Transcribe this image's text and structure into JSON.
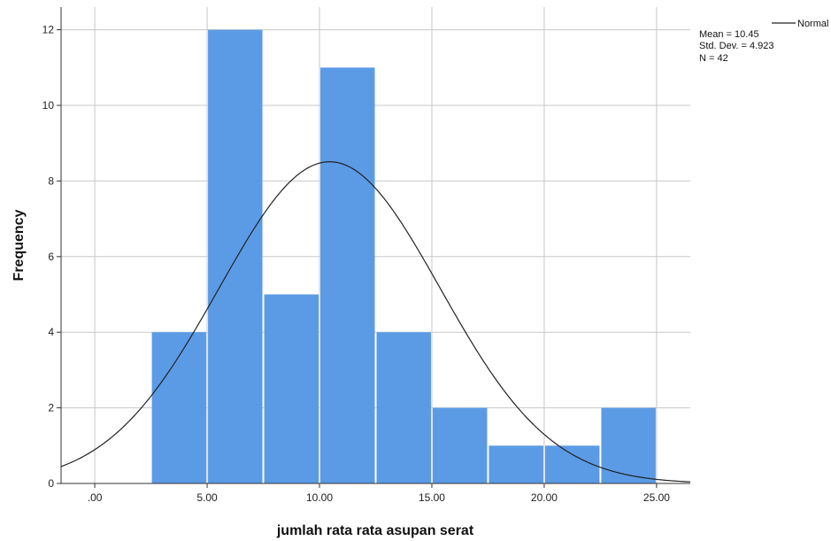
{
  "chart_data": {
    "type": "bar",
    "subtype": "histogram",
    "bins": [
      {
        "from": 2.5,
        "to": 5.0,
        "count": 4
      },
      {
        "from": 5.0,
        "to": 7.5,
        "count": 12
      },
      {
        "from": 7.5,
        "to": 10.0,
        "count": 5
      },
      {
        "from": 10.0,
        "to": 12.5,
        "count": 11
      },
      {
        "from": 12.5,
        "to": 15.0,
        "count": 4
      },
      {
        "from": 15.0,
        "to": 17.5,
        "count": 2
      },
      {
        "from": 17.5,
        "to": 20.0,
        "count": 1
      },
      {
        "from": 20.0,
        "to": 22.5,
        "count": 1
      },
      {
        "from": 22.5,
        "to": 25.0,
        "count": 2
      }
    ],
    "bar_color": "#5b9be6",
    "normal_curve": {
      "mean": 10.45,
      "std_dev": 4.923,
      "n": 42,
      "bin_width": 2.5,
      "color": "#222222"
    },
    "xlabel": "jumlah rata rata asupan serat",
    "ylabel": "Frequency",
    "xlim": [
      -1.5,
      26.5
    ],
    "ylim": [
      0,
      12.6
    ],
    "xticks": [
      0,
      5,
      10,
      15,
      20,
      25
    ],
    "xtick_labels": [
      ".00",
      "5.00",
      "10.00",
      "15.00",
      "20.00",
      "25.00"
    ],
    "yticks": [
      0,
      2,
      4,
      6,
      8,
      10,
      12
    ],
    "ytick_labels": [
      "0",
      "2",
      "4",
      "6",
      "8",
      "10",
      "12"
    ],
    "grid": true,
    "legend": {
      "position": "top-right",
      "line_label": "Normal",
      "mean_text": "Mean = 10.45",
      "std_text": "Std. Dev. = 4.923",
      "n_text": "N = 42"
    }
  }
}
